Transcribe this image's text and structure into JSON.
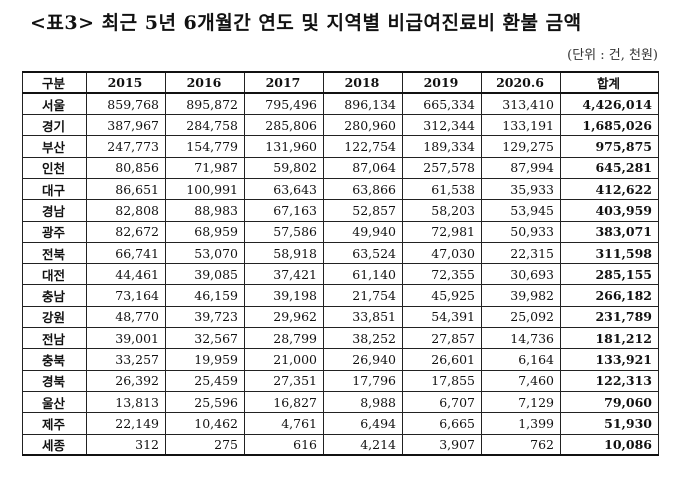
{
  "title": "<표3> 최근 5년 6개월간 연도 및 지역별 비급여진료비 환불 금액",
  "unit_note": "(단위 : 건, 천원)",
  "table": {
    "headers": [
      "구분",
      "2015",
      "2016",
      "2017",
      "2018",
      "2019",
      "2020.6",
      "합계"
    ],
    "rows": [
      [
        "서울",
        "859,768",
        "895,872",
        "795,496",
        "896,134",
        "665,334",
        "313,410",
        "4,426,014"
      ],
      [
        "경기",
        "387,967",
        "284,758",
        "285,806",
        "280,960",
        "312,344",
        "133,191",
        "1,685,026"
      ],
      [
        "부산",
        "247,773",
        "154,779",
        "131,960",
        "122,754",
        "189,334",
        "129,275",
        "975,875"
      ],
      [
        "인천",
        "80,856",
        "71,987",
        "59,802",
        "87,064",
        "257,578",
        "87,994",
        "645,281"
      ],
      [
        "대구",
        "86,651",
        "100,991",
        "63,643",
        "63,866",
        "61,538",
        "35,933",
        "412,622"
      ],
      [
        "경남",
        "82,808",
        "88,983",
        "67,163",
        "52,857",
        "58,203",
        "53,945",
        "403,959"
      ],
      [
        "광주",
        "82,672",
        "68,959",
        "57,586",
        "49,940",
        "72,981",
        "50,933",
        "383,071"
      ],
      [
        "전북",
        "66,741",
        "53,070",
        "58,918",
        "63,524",
        "47,030",
        "22,315",
        "311,598"
      ],
      [
        "대전",
        "44,461",
        "39,085",
        "37,421",
        "61,140",
        "72,355",
        "30,693",
        "285,155"
      ],
      [
        "충남",
        "73,164",
        "46,159",
        "39,198",
        "21,754",
        "45,925",
        "39,982",
        "266,182"
      ],
      [
        "강원",
        "48,770",
        "39,723",
        "29,962",
        "33,851",
        "54,391",
        "25,092",
        "231,789"
      ],
      [
        "전남",
        "39,001",
        "32,567",
        "28,799",
        "38,252",
        "27,857",
        "14,736",
        "181,212"
      ],
      [
        "충북",
        "33,257",
        "19,959",
        "21,000",
        "26,940",
        "26,601",
        "6,164",
        "133,921"
      ],
      [
        "경북",
        "26,392",
        "25,459",
        "27,351",
        "17,796",
        "17,855",
        "7,460",
        "122,313"
      ],
      [
        "울산",
        "13,813",
        "25,596",
        "16,827",
        "8,988",
        "6,707",
        "7,129",
        "79,060"
      ],
      [
        "제주",
        "22,149",
        "10,462",
        "4,761",
        "6,494",
        "6,665",
        "1,399",
        "51,930"
      ],
      [
        "세종",
        "312",
        "275",
        "616",
        "4,214",
        "3,907",
        "762",
        "10,086"
      ]
    ]
  }
}
